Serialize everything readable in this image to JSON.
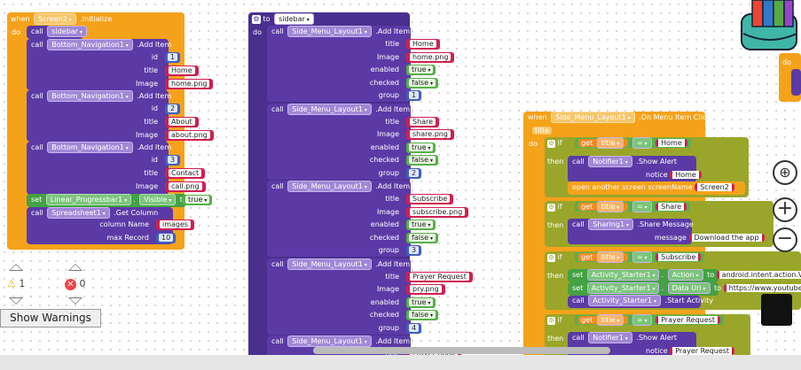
{
  "block1": {
    "event": "when",
    "component": "Screen2",
    "event_name": ".Initialize",
    "do": "do",
    "call_kw": "call",
    "set_kw": "set",
    "to_kw": "to",
    "proc_sidebar": "sidebar",
    "nav_component": "Bottom_Navigation1",
    "add_item": ".Add Item",
    "id_label": "id",
    "title_label": "title",
    "image_label": "Image",
    "items": [
      {
        "id": "1",
        "title": "Home",
        "image": "home.png"
      },
      {
        "id": "2",
        "title": "About",
        "image": "about.png"
      },
      {
        "id": "3",
        "title": "Contact",
        "image": "call.png"
      }
    ],
    "progress_component": "Linear_Progressbar1",
    "visible_prop": "Visible",
    "visible_value": "true",
    "sheet_component": "Spreadsheet1",
    "get_column": ".Get Column",
    "column_name_label": "column Name",
    "column_name": "images",
    "max_record_label": "max Record",
    "max_record": "10"
  },
  "block2": {
    "to_kw": "to",
    "proc_name": "sidebar",
    "do": "do",
    "call_kw": "call",
    "component": "Side_Menu_Layout1",
    "add_item": ".Add Item",
    "labels": {
      "title": "title",
      "image": "Image",
      "enabled": "enabled",
      "checked": "checked",
      "group": "group"
    },
    "items": [
      {
        "title": "Home",
        "image": "home.png",
        "enabled": "true",
        "checked": "false",
        "group": "1"
      },
      {
        "title": "Share",
        "image": "share.png",
        "enabled": "true",
        "checked": "false",
        "group": "2"
      },
      {
        "title": "Subscribe",
        "image": "subscribe.png",
        "enabled": "true",
        "checked": "false",
        "group": "3"
      },
      {
        "title": "Prayer Request",
        "image": "pry.png",
        "enabled": "true",
        "checked": "false",
        "group": "4"
      },
      {
        "title": "Prayer Book",
        "image": "",
        "enabled": "",
        "checked": "",
        "group": ""
      }
    ]
  },
  "block3": {
    "event": "when",
    "component": "Side_Menu_Layout1",
    "event_name": ".On Menu Item Click",
    "param": "title",
    "do": "do",
    "if_kw": "if",
    "then_kw": "then",
    "get_kw": "get",
    "get_var": "title",
    "op": "=",
    "call_kw": "call",
    "set_kw": "set",
    "to_kw": "to",
    "branches": [
      {
        "compare": "Home"
      },
      {
        "compare": "Share"
      },
      {
        "compare": "Subscribe"
      },
      {
        "compare": "Prayer Request"
      }
    ],
    "notifier": "Notifier1",
    "show_alert": ".Show Alert",
    "notice_label": "notice",
    "notice_home": "Home",
    "open_screen": "open another screen  screenName",
    "screen_name": "Screen2",
    "sharing": "Sharing1",
    "share_message": ".Share Message",
    "message_label": "message",
    "message_value": "Download the app",
    "starter": "Activity_Starter1",
    "action_prop": "Action",
    "action_value": "android.intent.action.VIEW",
    "data_uri_prop": "Data Uri",
    "data_uri_value": "https://www.youtube.c",
    "start_activity": ".Start Activity",
    "notice_prayer": "Prayer Request"
  },
  "warnings": {
    "warning_count": "1",
    "error_count": "0",
    "show_warnings_label": "Show Warnings"
  },
  "colors": {
    "event": "#f5a21b",
    "procedure": "#5b3aa6",
    "text": "#d11f4f",
    "math": "#3f5fbf",
    "logic": "#57b04a",
    "control": "#9aa62a"
  }
}
